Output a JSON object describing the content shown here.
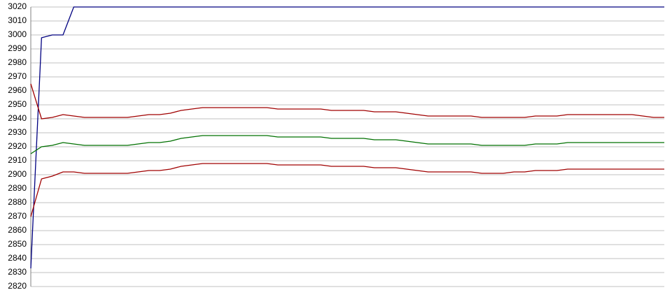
{
  "chart_data": {
    "type": "line",
    "categories": [
      null,
      null,
      null,
      null,
      null,
      null,
      null,
      null,
      null,
      null,
      null,
      null,
      null,
      null,
      null,
      null,
      null,
      null,
      null,
      null,
      null,
      null,
      null,
      null,
      null,
      null,
      null,
      null,
      null,
      null,
      null,
      null,
      null,
      null,
      null,
      null,
      null,
      null,
      null,
      null,
      null,
      null,
      null,
      null,
      null,
      null,
      null,
      null,
      null,
      null,
      null,
      null,
      null,
      null,
      null,
      null,
      null,
      null,
      null,
      null
    ],
    "series": [
      {
        "color": "#000080",
        "values": [
          2833,
          2998,
          3000,
          3000,
          3020,
          3020,
          3020,
          3020,
          3020,
          3020,
          3020,
          3020,
          3020,
          3020,
          3020,
          3020,
          3020,
          3020,
          3020,
          3020,
          3020,
          3020,
          3020,
          3020,
          3020,
          3020,
          3020,
          3020,
          3020,
          3020,
          3020,
          3020,
          3020,
          3020,
          3020,
          3020,
          3020,
          3020,
          3020,
          3020,
          3020,
          3020,
          3020,
          3020,
          3020,
          3020,
          3020,
          3020,
          3020,
          3020,
          3020,
          3020,
          3020,
          3020,
          3020,
          3020,
          3020,
          3020,
          3020,
          3020
        ]
      },
      {
        "color": "#a00000",
        "values": [
          2965,
          2940,
          2941,
          2943,
          2942,
          2941,
          2941,
          2941,
          2941,
          2941,
          2942,
          2943,
          2943,
          2944,
          2946,
          2947,
          2948,
          2948,
          2948,
          2948,
          2948,
          2948,
          2948,
          2947,
          2947,
          2947,
          2947,
          2947,
          2946,
          2946,
          2946,
          2946,
          2945,
          2945,
          2945,
          2944,
          2943,
          2942,
          2942,
          2942,
          2942,
          2942,
          2941,
          2941,
          2941,
          2941,
          2941,
          2942,
          2942,
          2942,
          2943,
          2943,
          2943,
          2943,
          2943,
          2943,
          2943,
          2942,
          2941,
          2941
        ]
      },
      {
        "color": "#007000",
        "values": [
          2915,
          2920,
          2921,
          2923,
          2922,
          2921,
          2921,
          2921,
          2921,
          2921,
          2922,
          2923,
          2923,
          2924,
          2926,
          2927,
          2928,
          2928,
          2928,
          2928,
          2928,
          2928,
          2928,
          2927,
          2927,
          2927,
          2927,
          2927,
          2926,
          2926,
          2926,
          2926,
          2925,
          2925,
          2925,
          2924,
          2923,
          2922,
          2922,
          2922,
          2922,
          2922,
          2921,
          2921,
          2921,
          2921,
          2921,
          2922,
          2922,
          2922,
          2923,
          2923,
          2923,
          2923,
          2923,
          2923,
          2923,
          2923,
          2923,
          2923
        ]
      },
      {
        "color": "#a00000",
        "values": [
          2870,
          2897,
          2899,
          2902,
          2902,
          2901,
          2901,
          2901,
          2901,
          2901,
          2902,
          2903,
          2903,
          2904,
          2906,
          2907,
          2908,
          2908,
          2908,
          2908,
          2908,
          2908,
          2908,
          2907,
          2907,
          2907,
          2907,
          2907,
          2906,
          2906,
          2906,
          2906,
          2905,
          2905,
          2905,
          2904,
          2903,
          2902,
          2902,
          2902,
          2902,
          2902,
          2901,
          2901,
          2901,
          2902,
          2902,
          2903,
          2903,
          2903,
          2904,
          2904,
          2904,
          2904,
          2904,
          2904,
          2904,
          2904,
          2904,
          2904
        ]
      }
    ],
    "ylim": [
      2820,
      3020
    ],
    "yticks": [
      2820,
      2830,
      2840,
      2850,
      2860,
      2870,
      2880,
      2890,
      2900,
      2910,
      2920,
      2930,
      2940,
      2950,
      2960,
      2970,
      2980,
      2990,
      3000,
      3010,
      3020
    ],
    "grid": true
  }
}
